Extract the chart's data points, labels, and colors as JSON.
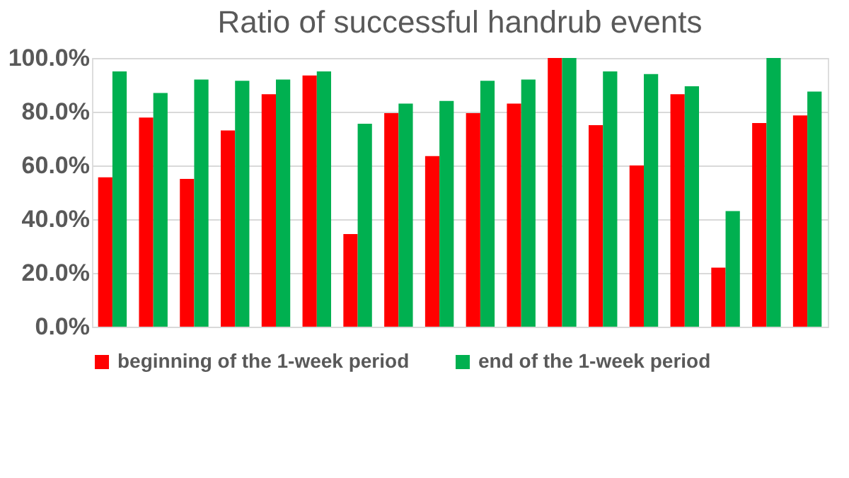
{
  "chart_data": {
    "type": "bar",
    "title": "Ratio of successful handrub events",
    "categories": [
      null,
      null,
      null,
      null,
      null,
      null,
      null,
      null,
      null,
      null,
      null,
      null,
      null,
      null,
      null,
      null,
      null,
      null
    ],
    "series": [
      {
        "name": "beginning of the 1-week period",
        "color": "#ff0000",
        "values": [
          55.6,
          77.8,
          55,
          73,
          86.5,
          93.5,
          34.5,
          79.5,
          63.5,
          79.5,
          83,
          100,
          75,
          60,
          86.5,
          22,
          75.8,
          78.6
        ]
      },
      {
        "name": "end of the 1-week period",
        "color": "#00b050",
        "values": [
          95,
          87,
          92,
          91.5,
          92,
          95,
          75.5,
          83,
          84,
          91.5,
          92,
          100,
          95,
          94,
          89.5,
          43,
          100,
          87.5
        ]
      }
    ],
    "ylim": [
      0,
      100
    ],
    "yticks": [
      {
        "value": 0,
        "label": "0.0%"
      },
      {
        "value": 20,
        "label": "20.0%"
      },
      {
        "value": 40,
        "label": "40.0%"
      },
      {
        "value": 60,
        "label": "60.0%"
      },
      {
        "value": 80,
        "label": "80.0%"
      },
      {
        "value": 100,
        "label": "100.0%"
      }
    ],
    "grid": "y",
    "legend": "bottom",
    "tick_labels": "y"
  }
}
